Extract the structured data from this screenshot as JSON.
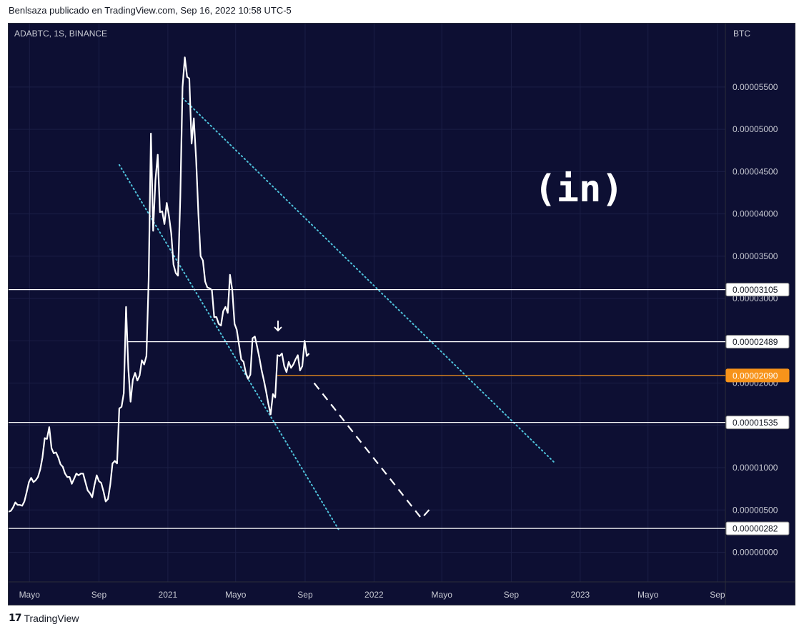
{
  "header": {
    "attribution": "Benlsaza publicado en TradingView.com, Sep 16, 2022 10:58 UTC-5"
  },
  "footer": {
    "logo_glyph": "17",
    "brand": "TradingView"
  },
  "watermark": {
    "text": "(in)"
  },
  "colors": {
    "background": "#0d0f33",
    "price_line": "#ffffff",
    "channel": "#4fc3dc",
    "highlight": "#f7931a",
    "grid": "#1b1f46",
    "axis_text": "#c8cad3"
  },
  "chart_data": {
    "type": "line",
    "symbol_label": "ADABTC, 1S, BINANCE",
    "currency": "BTC",
    "x_ticks": [
      "Mayo",
      "Sep",
      "2021",
      "Mayo",
      "Sep",
      "2022",
      "Mayo",
      "Sep",
      "2023",
      "Mayo",
      "Sep"
    ],
    "x_tick_dates": [
      "2020-05-01",
      "2020-09-01",
      "2021-01-01",
      "2021-05-01",
      "2021-09-01",
      "2022-01-01",
      "2022-05-01",
      "2022-09-01",
      "2023-01-01",
      "2023-05-01",
      "2023-09-01"
    ],
    "x_range": [
      "2020-03-25",
      "2023-09-15"
    ],
    "y_ticks": [
      "0.00000000",
      "0.00000500",
      "0.00001000",
      "0.00001500",
      "0.00002000",
      "0.00002500",
      "0.00003000",
      "0.00003500",
      "0.00004000",
      "0.00004500",
      "0.00005000",
      "0.00005500"
    ],
    "ylim": [
      -3.5e-06,
      6.25e-05
    ],
    "series": [
      {
        "points": [
          [
            "2020-03-25",
            4.8e-06
          ],
          [
            "2020-03-29",
            4.9e-06
          ],
          [
            "2020-04-02",
            5.3e-06
          ],
          [
            "2020-04-06",
            5.9e-06
          ],
          [
            "2020-04-10",
            5.6e-06
          ],
          [
            "2020-04-14",
            5.6e-06
          ],
          [
            "2020-04-18",
            5.5e-06
          ],
          [
            "2020-04-22",
            6e-06
          ],
          [
            "2020-04-26",
            7.1e-06
          ],
          [
            "2020-04-30",
            8.3e-06
          ],
          [
            "2020-05-04",
            8.8e-06
          ],
          [
            "2020-05-08",
            8.3e-06
          ],
          [
            "2020-05-12",
            8.5e-06
          ],
          [
            "2020-05-16",
            8.9e-06
          ],
          [
            "2020-05-20",
            9.8e-06
          ],
          [
            "2020-05-24",
            1.12e-05
          ],
          [
            "2020-05-28",
            1.35e-05
          ],
          [
            "2020-06-01",
            1.34e-05
          ],
          [
            "2020-06-05",
            1.48e-05
          ],
          [
            "2020-06-09",
            1.23e-05
          ],
          [
            "2020-06-13",
            1.17e-05
          ],
          [
            "2020-06-17",
            1.18e-05
          ],
          [
            "2020-06-21",
            1.12e-05
          ],
          [
            "2020-06-25",
            1.04e-05
          ],
          [
            "2020-06-29",
            1.01e-05
          ],
          [
            "2020-07-03",
            9.3e-06
          ],
          [
            "2020-07-07",
            8.9e-06
          ],
          [
            "2020-07-11",
            8.9e-06
          ],
          [
            "2020-07-15",
            8.1e-06
          ],
          [
            "2020-07-19",
            8.7e-06
          ],
          [
            "2020-07-23",
            9.3e-06
          ],
          [
            "2020-07-27",
            9.1e-06
          ],
          [
            "2020-07-31",
            9.3e-06
          ],
          [
            "2020-08-04",
            9.3e-06
          ],
          [
            "2020-08-08",
            8.3e-06
          ],
          [
            "2020-08-12",
            7.3e-06
          ],
          [
            "2020-08-16",
            7e-06
          ],
          [
            "2020-08-20",
            6.5e-06
          ],
          [
            "2020-08-24",
            7.9e-06
          ],
          [
            "2020-08-28",
            9.1e-06
          ],
          [
            "2020-09-01",
            8.4e-06
          ],
          [
            "2020-09-05",
            8.2e-06
          ],
          [
            "2020-09-09",
            7.2e-06
          ],
          [
            "2020-09-13",
            6e-06
          ],
          [
            "2020-09-17",
            6.3e-06
          ],
          [
            "2020-09-21",
            8e-06
          ],
          [
            "2020-09-25",
            1.05e-05
          ],
          [
            "2020-09-29",
            1.08e-05
          ],
          [
            "2020-10-03",
            1.05e-05
          ],
          [
            "2020-10-07",
            1.7e-05
          ],
          [
            "2020-10-11",
            1.72e-05
          ],
          [
            "2020-10-15",
            1.88e-05
          ],
          [
            "2020-10-19",
            2.9e-05
          ],
          [
            "2020-10-23",
            2.17e-05
          ],
          [
            "2020-10-27",
            1.78e-05
          ],
          [
            "2020-10-31",
            2.04e-05
          ],
          [
            "2020-11-04",
            2.12e-05
          ],
          [
            "2020-11-08",
            2.03e-05
          ],
          [
            "2020-11-12",
            2.09e-05
          ],
          [
            "2020-11-16",
            2.27e-05
          ],
          [
            "2020-11-20",
            2.22e-05
          ],
          [
            "2020-11-24",
            2.32e-05
          ],
          [
            "2020-11-28",
            3.22e-05
          ],
          [
            "2020-12-02",
            4.95e-05
          ],
          [
            "2020-12-06",
            3.8e-05
          ],
          [
            "2020-12-10",
            4.4e-05
          ],
          [
            "2020-12-14",
            4.7e-05
          ],
          [
            "2020-12-18",
            4.02e-05
          ],
          [
            "2020-12-22",
            4.03e-05
          ],
          [
            "2020-12-26",
            3.88e-05
          ],
          [
            "2020-12-30",
            4.13e-05
          ],
          [
            "2021-01-03",
            3.97e-05
          ],
          [
            "2021-01-07",
            3.77e-05
          ],
          [
            "2021-01-11",
            3.4e-05
          ],
          [
            "2021-01-15",
            3.3e-05
          ],
          [
            "2021-01-19",
            3.27e-05
          ],
          [
            "2021-01-23",
            4.2e-05
          ],
          [
            "2021-01-27",
            5.5e-05
          ],
          [
            "2021-01-31",
            5.85e-05
          ],
          [
            "2021-02-04",
            5.62e-05
          ],
          [
            "2021-02-08",
            5.6e-05
          ],
          [
            "2021-02-12",
            4.83e-05
          ],
          [
            "2021-02-16",
            5.13e-05
          ],
          [
            "2021-02-20",
            4.65e-05
          ],
          [
            "2021-02-24",
            4e-05
          ],
          [
            "2021-02-28",
            3.5e-05
          ],
          [
            "2021-03-04",
            3.45e-05
          ],
          [
            "2021-03-08",
            3.2e-05
          ],
          [
            "2021-03-12",
            3.13e-05
          ],
          [
            "2021-03-16",
            3.12e-05
          ],
          [
            "2021-03-20",
            3.1e-05
          ],
          [
            "2021-03-24",
            2.78e-05
          ],
          [
            "2021-03-28",
            2.78e-05
          ],
          [
            "2021-04-01",
            2.7e-05
          ],
          [
            "2021-04-05",
            2.68e-05
          ],
          [
            "2021-04-09",
            2.85e-05
          ],
          [
            "2021-04-13",
            2.9e-05
          ],
          [
            "2021-04-17",
            2.83e-05
          ],
          [
            "2021-04-21",
            3.28e-05
          ],
          [
            "2021-04-25",
            3.1e-05
          ],
          [
            "2021-04-29",
            2.7e-05
          ],
          [
            "2021-05-03",
            2.63e-05
          ],
          [
            "2021-05-07",
            2.45e-05
          ],
          [
            "2021-05-11",
            2.28e-05
          ],
          [
            "2021-05-15",
            2.25e-05
          ],
          [
            "2021-05-19",
            2.12e-05
          ],
          [
            "2021-05-23",
            2.05e-05
          ],
          [
            "2021-05-27",
            2.1e-05
          ],
          [
            "2021-05-31",
            2.53e-05
          ],
          [
            "2021-06-04",
            2.55e-05
          ],
          [
            "2021-06-08",
            2.43e-05
          ],
          [
            "2021-06-12",
            2.3e-05
          ],
          [
            "2021-06-16",
            2.15e-05
          ],
          [
            "2021-06-20",
            2.03e-05
          ],
          [
            "2021-06-24",
            1.9e-05
          ],
          [
            "2021-06-28",
            1.75e-05
          ],
          [
            "2021-07-02",
            1.63e-05
          ],
          [
            "2021-07-06",
            1.87e-05
          ],
          [
            "2021-07-10",
            1.83e-05
          ],
          [
            "2021-07-14",
            2.33e-05
          ],
          [
            "2021-07-18",
            2.32e-05
          ],
          [
            "2021-07-22",
            2.35e-05
          ],
          [
            "2021-07-26",
            2.2e-05
          ],
          [
            "2021-07-30",
            2.13e-05
          ],
          [
            "2021-08-03",
            2.25e-05
          ],
          [
            "2021-08-07",
            2.18e-05
          ],
          [
            "2021-08-11",
            2.22e-05
          ],
          [
            "2021-08-15",
            2.28e-05
          ],
          [
            "2021-08-19",
            2.33e-05
          ],
          [
            "2021-08-23",
            2.15e-05
          ],
          [
            "2021-08-27",
            2.2e-05
          ],
          [
            "2021-08-31",
            2.5e-05
          ],
          [
            "2021-09-04",
            2.32e-05
          ],
          [
            "2021-09-08",
            2.35e-05
          ]
        ]
      }
    ],
    "horizontal_levels": [
      {
        "label": "0.00003105",
        "value": 3.105e-05,
        "color": "#ffffff",
        "from": "2020-03-25"
      },
      {
        "label": "0.00002489",
        "value": 2.489e-05,
        "color": "#ffffff",
        "from": "2020-10-21"
      },
      {
        "label": "0.00002090",
        "value": 2.09e-05,
        "color": "#f7931a",
        "from": "2021-07-14"
      },
      {
        "label": "0.00001535",
        "value": 1.535e-05,
        "color": "#ffffff",
        "from": "2020-03-25"
      },
      {
        "label": "0.00000282",
        "value": 2.82e-06,
        "color": "#ffffff",
        "from": "2020-03-25"
      }
    ],
    "channel_lines": [
      {
        "from": [
          "2020-10-07",
          4.58e-05
        ],
        "to": [
          "2021-11-01",
          2.5e-06
        ]
      },
      {
        "from": [
          "2021-01-27",
          5.37e-05
        ],
        "to": [
          "2022-11-18",
          1.05e-05
        ]
      }
    ],
    "projection": {
      "points": [
        [
          "2021-09-17",
          2e-05
        ],
        [
          "2022-03-26",
          4e-06
        ],
        [
          "2022-04-11",
          5.2e-06
        ]
      ]
    },
    "annotation_arrow": {
      "at": [
        "2021-07-15",
        2.62e-05
      ]
    },
    "grid": true
  }
}
